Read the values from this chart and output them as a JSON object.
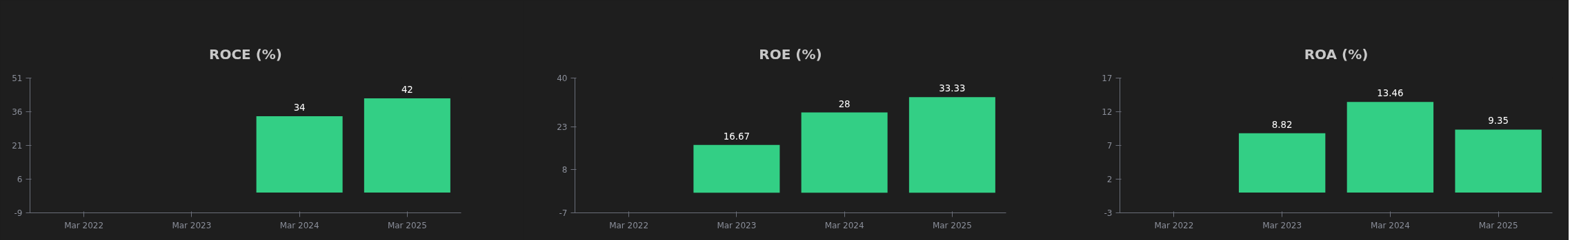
{
  "chart_data": [
    {
      "type": "bar",
      "title": "ROCE (%)",
      "categories": [
        "Mar 2022",
        "Mar 2023",
        "Mar 2024",
        "Mar 2025"
      ],
      "values": [
        null,
        null,
        34,
        42
      ],
      "color": "#33cf85",
      "ylim": [
        -9,
        51
      ],
      "yticks": [
        -9,
        6,
        21,
        36,
        51
      ],
      "data_labels": true
    },
    {
      "type": "bar",
      "title": "ROE (%)",
      "categories": [
        "Mar 2022",
        "Mar 2023",
        "Mar 2024",
        "Mar 2025"
      ],
      "values": [
        null,
        16.67,
        28,
        33.33
      ],
      "color": "#33cf85",
      "ylim": [
        -7,
        40
      ],
      "yticks": [
        -7,
        8,
        23,
        40
      ],
      "data_labels": true
    },
    {
      "type": "bar",
      "title": "ROA (%)",
      "categories": [
        "Mar 2022",
        "Mar 2023",
        "Mar 2024",
        "Mar 2025"
      ],
      "values": [
        null,
        8.82,
        13.46,
        9.35
      ],
      "color": "#33cf85",
      "ylim": [
        -3,
        17
      ],
      "yticks": [
        -3,
        2,
        7,
        12,
        17
      ],
      "data_labels": true
    }
  ]
}
